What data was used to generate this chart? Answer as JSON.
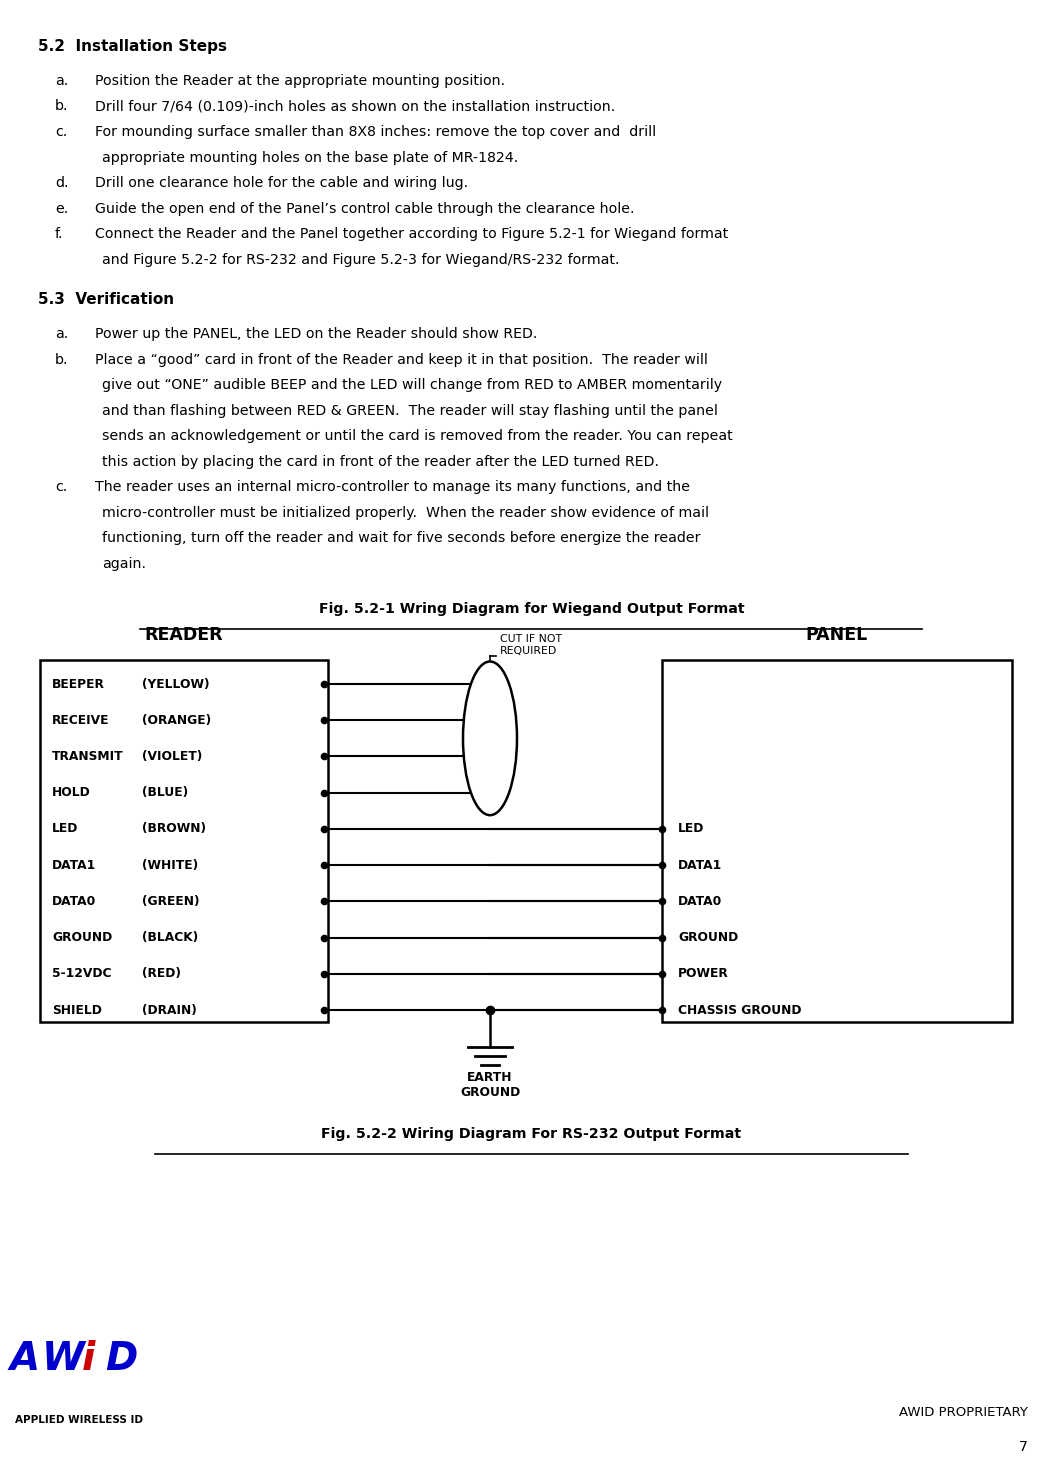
{
  "title_52": "5.2  Installation Steps",
  "step52_a_label": "a.",
  "step52_a_text": "Position the Reader at the appropriate mounting position.",
  "step52_b_label": "b.",
  "step52_b_text": "Drill four 7/64 (0.109)-inch holes as shown on the installation instruction.",
  "step52_c_label": "c.",
  "step52_c_line1": "For mounding surface smaller than 8X8 inches: remove the top cover and  drill",
  "step52_c_line2": "appropriate mounting holes on the base plate of MR-1824.",
  "step52_d_label": "d.",
  "step52_d_text": "Drill one clearance hole for the cable and wiring lug.",
  "step52_e_label": "e.",
  "step52_e_text": "Guide the open end of the Panel’s control cable through the clearance hole.",
  "step52_f_label": "f.",
  "step52_f_line1": "Connect the Reader and the Panel together according to Figure 5.2-1 for Wiegand format",
  "step52_f_line2": "and Figure 5.2-2 for RS-232 and Figure 5.2-3 for Wiegand/RS-232 format.",
  "title_53": "5.3  Verification",
  "step53_a_label": "a.",
  "step53_a_text": "Power up the PANEL, the LED on the Reader should show RED.",
  "step53_b_label": "b.",
  "step53_b_line1": "Place a “good” card in front of the Reader and keep it in that position.  The reader will",
  "step53_b_line2": "give out “ONE” audible BEEP and the LED will change from RED to AMBER momentarily",
  "step53_b_line3": "and than flashing between RED & GREEN.  The reader will stay flashing until the panel",
  "step53_b_line4": "sends an acknowledgement or until the card is removed from the reader. You can repeat",
  "step53_b_line5": "this action by placing the card in front of the reader after the LED turned RED.",
  "step53_c_label": "c.",
  "step53_c_line1": "The reader uses an internal micro-controller to manage its many functions, and the",
  "step53_c_line2": "micro-controller must be initialized properly.  When the reader show evidence of mail",
  "step53_c_line3": "functioning, turn off the reader and wait for five seconds before energize the reader",
  "step53_c_line4": "again.",
  "fig1_title": "Fig. 5.2-1 Wring Diagram for Wiegand Output Format",
  "fig2_title": "Fig. 5.2-2 Wiring Diagram For RS-232 Output Format",
  "reader_header": "READER",
  "panel_header": "PANEL",
  "cut_if_not": "CUT IF NOT\nREQUIRED",
  "earth_ground": "EARTH\nGROUND",
  "reader_rows": [
    [
      "BEEPER",
      "(YELLOW)"
    ],
    [
      "RECEIVE",
      "(ORANGE)"
    ],
    [
      "TRANSMIT",
      "(VIOLET)"
    ],
    [
      "HOLD",
      "(BLUE)"
    ],
    [
      "LED",
      "(BROWN)"
    ],
    [
      "DATA1",
      "(WHITE)"
    ],
    [
      "DATA0",
      "(GREEN)"
    ],
    [
      "GROUND",
      "(BLACK)"
    ],
    [
      "5-12VDC",
      "(RED)"
    ],
    [
      "SHIELD",
      "(DRAIN)"
    ]
  ],
  "panel_rows": [
    "LED",
    "DATA1",
    "DATA0",
    "GROUND",
    "POWER",
    "CHASSIS GROUND"
  ],
  "awid_proprietary": "AWID PROPRIETARY",
  "page_num": "7",
  "bg_color": "#ffffff",
  "awid_A_color": "#0000cc",
  "awid_W_color": "#0000cc",
  "awid_I_color": "#cc0000",
  "awid_D_color": "#0000cc",
  "awid_dot_color": "#cc0000",
  "awid_sub_color": "#000000"
}
